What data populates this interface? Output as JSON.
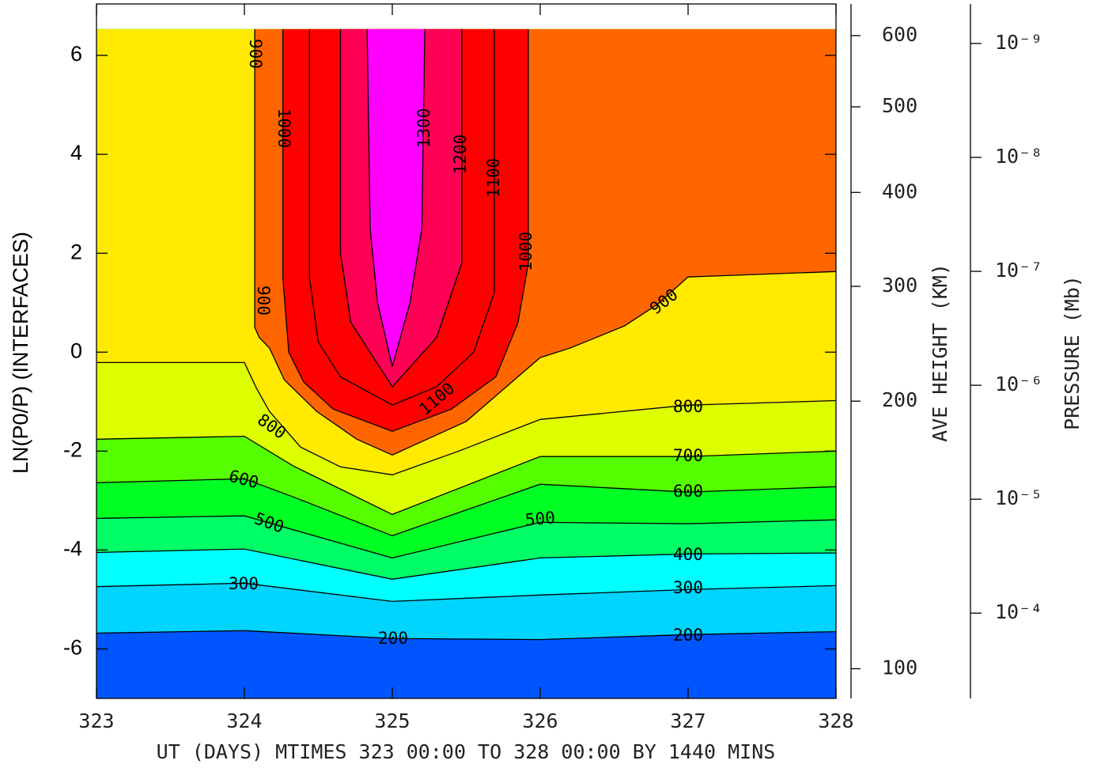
{
  "chart_data": {
    "type": "contour",
    "xlabel": "UT (DAYS) MTIMES 323 00:00 TO 328 00:00 BY 1440 MINS",
    "ylabel": "LN(P0/P) (INTERFACES)",
    "xlim": [
      323,
      328
    ],
    "xticks": [
      323,
      324,
      325,
      326,
      327,
      328
    ],
    "ylim": [
      -7,
      7.04
    ],
    "yticks": [
      -6,
      -4,
      -2,
      0,
      2,
      4,
      6
    ],
    "data_ylim": [
      -7,
      6.53
    ],
    "base_color": "#0055ff",
    "contours": [
      {
        "level": 200,
        "color": "#00d4ff",
        "x": [
          323,
          324,
          325,
          326,
          327,
          328
        ],
        "y": [
          -5.68,
          -5.63,
          -5.79,
          -5.81,
          -5.71,
          -5.65
        ]
      },
      {
        "level": 300,
        "color": "#00ffff",
        "x": [
          323,
          324,
          325,
          326,
          327,
          328
        ],
        "y": [
          -4.74,
          -4.67,
          -5.04,
          -4.91,
          -4.8,
          -4.72
        ]
      },
      {
        "level": 400,
        "color": "#00ff66",
        "x": [
          323,
          324,
          325,
          326,
          327,
          328
        ],
        "y": [
          -4.05,
          -3.98,
          -4.59,
          -4.16,
          -4.08,
          -4.06
        ]
      },
      {
        "level": 500,
        "color": "#00ff22",
        "x": [
          323,
          324,
          325,
          326,
          327,
          328
        ],
        "y": [
          -3.36,
          -3.31,
          -4.16,
          -3.44,
          -3.47,
          -3.39
        ]
      },
      {
        "level": 600,
        "color": "#55ff00",
        "x": [
          323,
          324,
          324.35,
          325,
          326,
          327,
          328
        ],
        "y": [
          -2.64,
          -2.56,
          -2.95,
          -3.71,
          -2.67,
          -2.83,
          -2.72
        ]
      },
      {
        "level": 700,
        "color": "#ddff00",
        "x": [
          323,
          324,
          324.33,
          325,
          326,
          327,
          328
        ],
        "y": [
          -1.76,
          -1.7,
          -2.3,
          -3.28,
          -2.11,
          -2.11,
          -2.0
        ]
      },
      {
        "level": 800,
        "color": "#ffea00",
        "x": [
          323,
          324,
          324.08,
          324.17,
          324.38,
          324.65,
          325,
          325.45,
          326,
          327,
          328
        ],
        "y": [
          -0.21,
          -0.21,
          -0.72,
          -1.2,
          -1.92,
          -2.32,
          -2.48,
          -2.0,
          -1.36,
          -1.07,
          -0.98
        ]
      },
      {
        "level": 900,
        "color": "#ff6600",
        "x": [
          324.07,
          324.07,
          324.1,
          324.17,
          324.27,
          324.49,
          324.76,
          325,
          325.5,
          326,
          326.2,
          326.57,
          326.79,
          327,
          328
        ],
        "y": [
          6.53,
          0.5,
          0.3,
          0.08,
          -0.56,
          -1.2,
          -1.76,
          -2.08,
          -1.4,
          -0.11,
          0.08,
          0.53,
          0.96,
          1.52,
          1.63
        ]
      },
      {
        "level": 1000,
        "color": "#ff0000",
        "x": [
          324.26,
          324.26,
          324.3,
          324.4,
          324.6,
          325,
          325.4,
          325.7,
          325.85,
          325.92,
          325.92
        ],
        "y": [
          6.53,
          1.5,
          0,
          -0.6,
          -1.15,
          -1.6,
          -1.15,
          -0.5,
          0.6,
          1.8,
          6.53
        ]
      },
      {
        "level": 1100,
        "color": "#ff0000",
        "x": [
          324.44,
          324.44,
          324.5,
          324.65,
          325,
          325.3,
          325.55,
          325.69,
          325.69
        ],
        "y": [
          6.53,
          1.5,
          0.2,
          -0.5,
          -1.07,
          -0.7,
          0,
          1.2,
          6.53
        ]
      },
      {
        "level": 1200,
        "color": "#ff0055",
        "x": [
          324.65,
          324.65,
          324.72,
          325,
          325.3,
          325.47,
          325.47
        ],
        "y": [
          6.53,
          2,
          0.6,
          -0.7,
          0.3,
          1.8,
          6.53
        ]
      },
      {
        "level": 1300,
        "color": "#ff00ff",
        "x": [
          324.83,
          324.85,
          324.9,
          325,
          325.12,
          325.2,
          325.22
        ],
        "y": [
          6.53,
          2.5,
          1,
          -0.29,
          1,
          2.5,
          6.53
        ]
      }
    ],
    "height_axis": {
      "label": "AVE HEIGHT (KM)",
      "ticks": [
        100,
        200,
        300,
        400,
        500,
        600
      ],
      "positions": [
        -6.4,
        -0.99,
        1.33,
        3.23,
        4.96,
        6.4
      ]
    },
    "y2label": "PRESSURE (Mb)",
    "y2log": true,
    "y2lim": [
      0.00056,
      4.5e-10
    ],
    "y2ticks": [
      {
        "value": 1e-09,
        "label": "10⁻⁹"
      },
      {
        "value": 1e-08,
        "label": "10⁻⁸"
      },
      {
        "value": 1e-07,
        "label": "10⁻⁷"
      },
      {
        "value": 1e-06,
        "label": "10⁻⁶"
      },
      {
        "value": 1e-05,
        "label": "10⁻⁵"
      },
      {
        "value": 0.0001,
        "label": "10⁻⁴"
      }
    ]
  }
}
